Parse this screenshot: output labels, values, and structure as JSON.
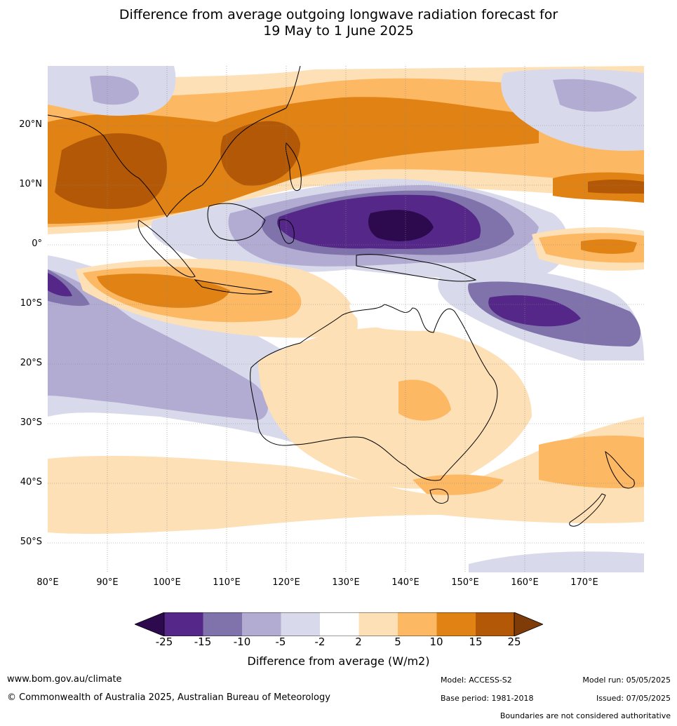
{
  "title_line1": "Difference from average outgoing longwave radiation forecast for",
  "title_line2": "19 May to 1 June 2025",
  "lat_labels": [
    "20°N",
    "10°N",
    "0°",
    "10°S",
    "20°S",
    "30°S",
    "40°S",
    "50°S"
  ],
  "lon_labels": [
    "80°E",
    "90°E",
    "100°E",
    "110°E",
    "120°E",
    "130°E",
    "140°E",
    "150°E",
    "160°E",
    "170°E"
  ],
  "colorbar": {
    "ticks": [
      "-25",
      "-15",
      "-10",
      "-5",
      "-2",
      "2",
      "5",
      "10",
      "15",
      "25"
    ],
    "colors": [
      "#2d0a4e",
      "#542788",
      "#8073ac",
      "#b2abd2",
      "#d8daeb",
      "#ffffff",
      "#fee0b6",
      "#fdb863",
      "#e08214",
      "#b35806",
      "#7f3b08"
    ],
    "label": "Difference from average (W/m2)"
  },
  "footer": {
    "website": "www.bom.gov.au/climate",
    "copyright": "© Commonwealth of Australia 2025, Australian Bureau of Meteorology",
    "model": "Model: ACCESS-S2",
    "base_period": "Base period: 1981-2018",
    "model_run": "Model run: 05/05/2025",
    "issued": "Issued: 07/05/2025",
    "boundaries_note": "Boundaries are not considered authoritative"
  }
}
